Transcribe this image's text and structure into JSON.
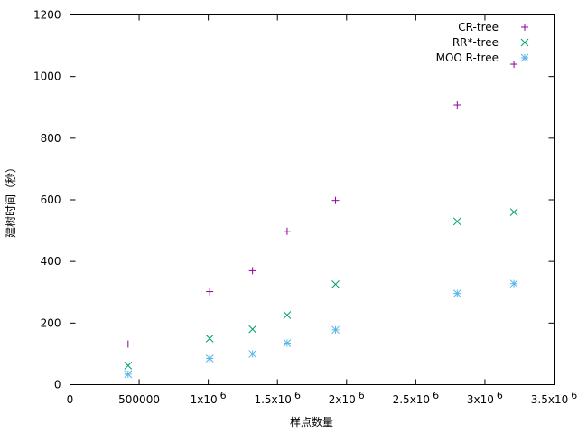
{
  "chart_data": {
    "type": "scatter",
    "title": "",
    "xlabel": "样点数量",
    "ylabel": "建树时间（秒）",
    "xlim": [
      0,
      3500000
    ],
    "ylim": [
      0,
      1200
    ],
    "grid": false,
    "legend": "top-right",
    "x_ticks": [
      {
        "value": 0,
        "base": "0",
        "exp": ""
      },
      {
        "value": 500000,
        "base": "500000",
        "exp": ""
      },
      {
        "value": 1000000,
        "base": "1x10",
        "exp": "6"
      },
      {
        "value": 1500000,
        "base": "1.5x10",
        "exp": "6"
      },
      {
        "value": 2000000,
        "base": "2x10",
        "exp": "6"
      },
      {
        "value": 2500000,
        "base": "2.5x10",
        "exp": "6"
      },
      {
        "value": 3000000,
        "base": "3x10",
        "exp": "6"
      },
      {
        "value": 3500000,
        "base": "3.5x10",
        "exp": "6"
      }
    ],
    "y_ticks": [
      "0",
      "200",
      "400",
      "600",
      "800",
      "1000",
      "1200"
    ],
    "series": [
      {
        "name": "CR-tree",
        "marker": "plus",
        "color": "#94009b",
        "points": [
          [
            420000,
            132
          ],
          [
            1010000,
            302
          ],
          [
            1320000,
            370
          ],
          [
            1570000,
            498
          ],
          [
            1920000,
            598
          ],
          [
            2800000,
            908
          ],
          [
            3210000,
            1040
          ]
        ]
      },
      {
        "name": "RR*-tree",
        "marker": "cross",
        "color": "#009e73",
        "points": [
          [
            420000,
            62
          ],
          [
            1010000,
            150
          ],
          [
            1320000,
            180
          ],
          [
            1570000,
            226
          ],
          [
            1920000,
            326
          ],
          [
            2800000,
            530
          ],
          [
            3210000,
            560
          ]
        ]
      },
      {
        "name": "MOO R-tree",
        "marker": "star",
        "color": "#56b4e9",
        "points": [
          [
            420000,
            34
          ],
          [
            1010000,
            85
          ],
          [
            1320000,
            100
          ],
          [
            1570000,
            135
          ],
          [
            1920000,
            178
          ],
          [
            2800000,
            296
          ],
          [
            3210000,
            328
          ]
        ]
      }
    ]
  }
}
